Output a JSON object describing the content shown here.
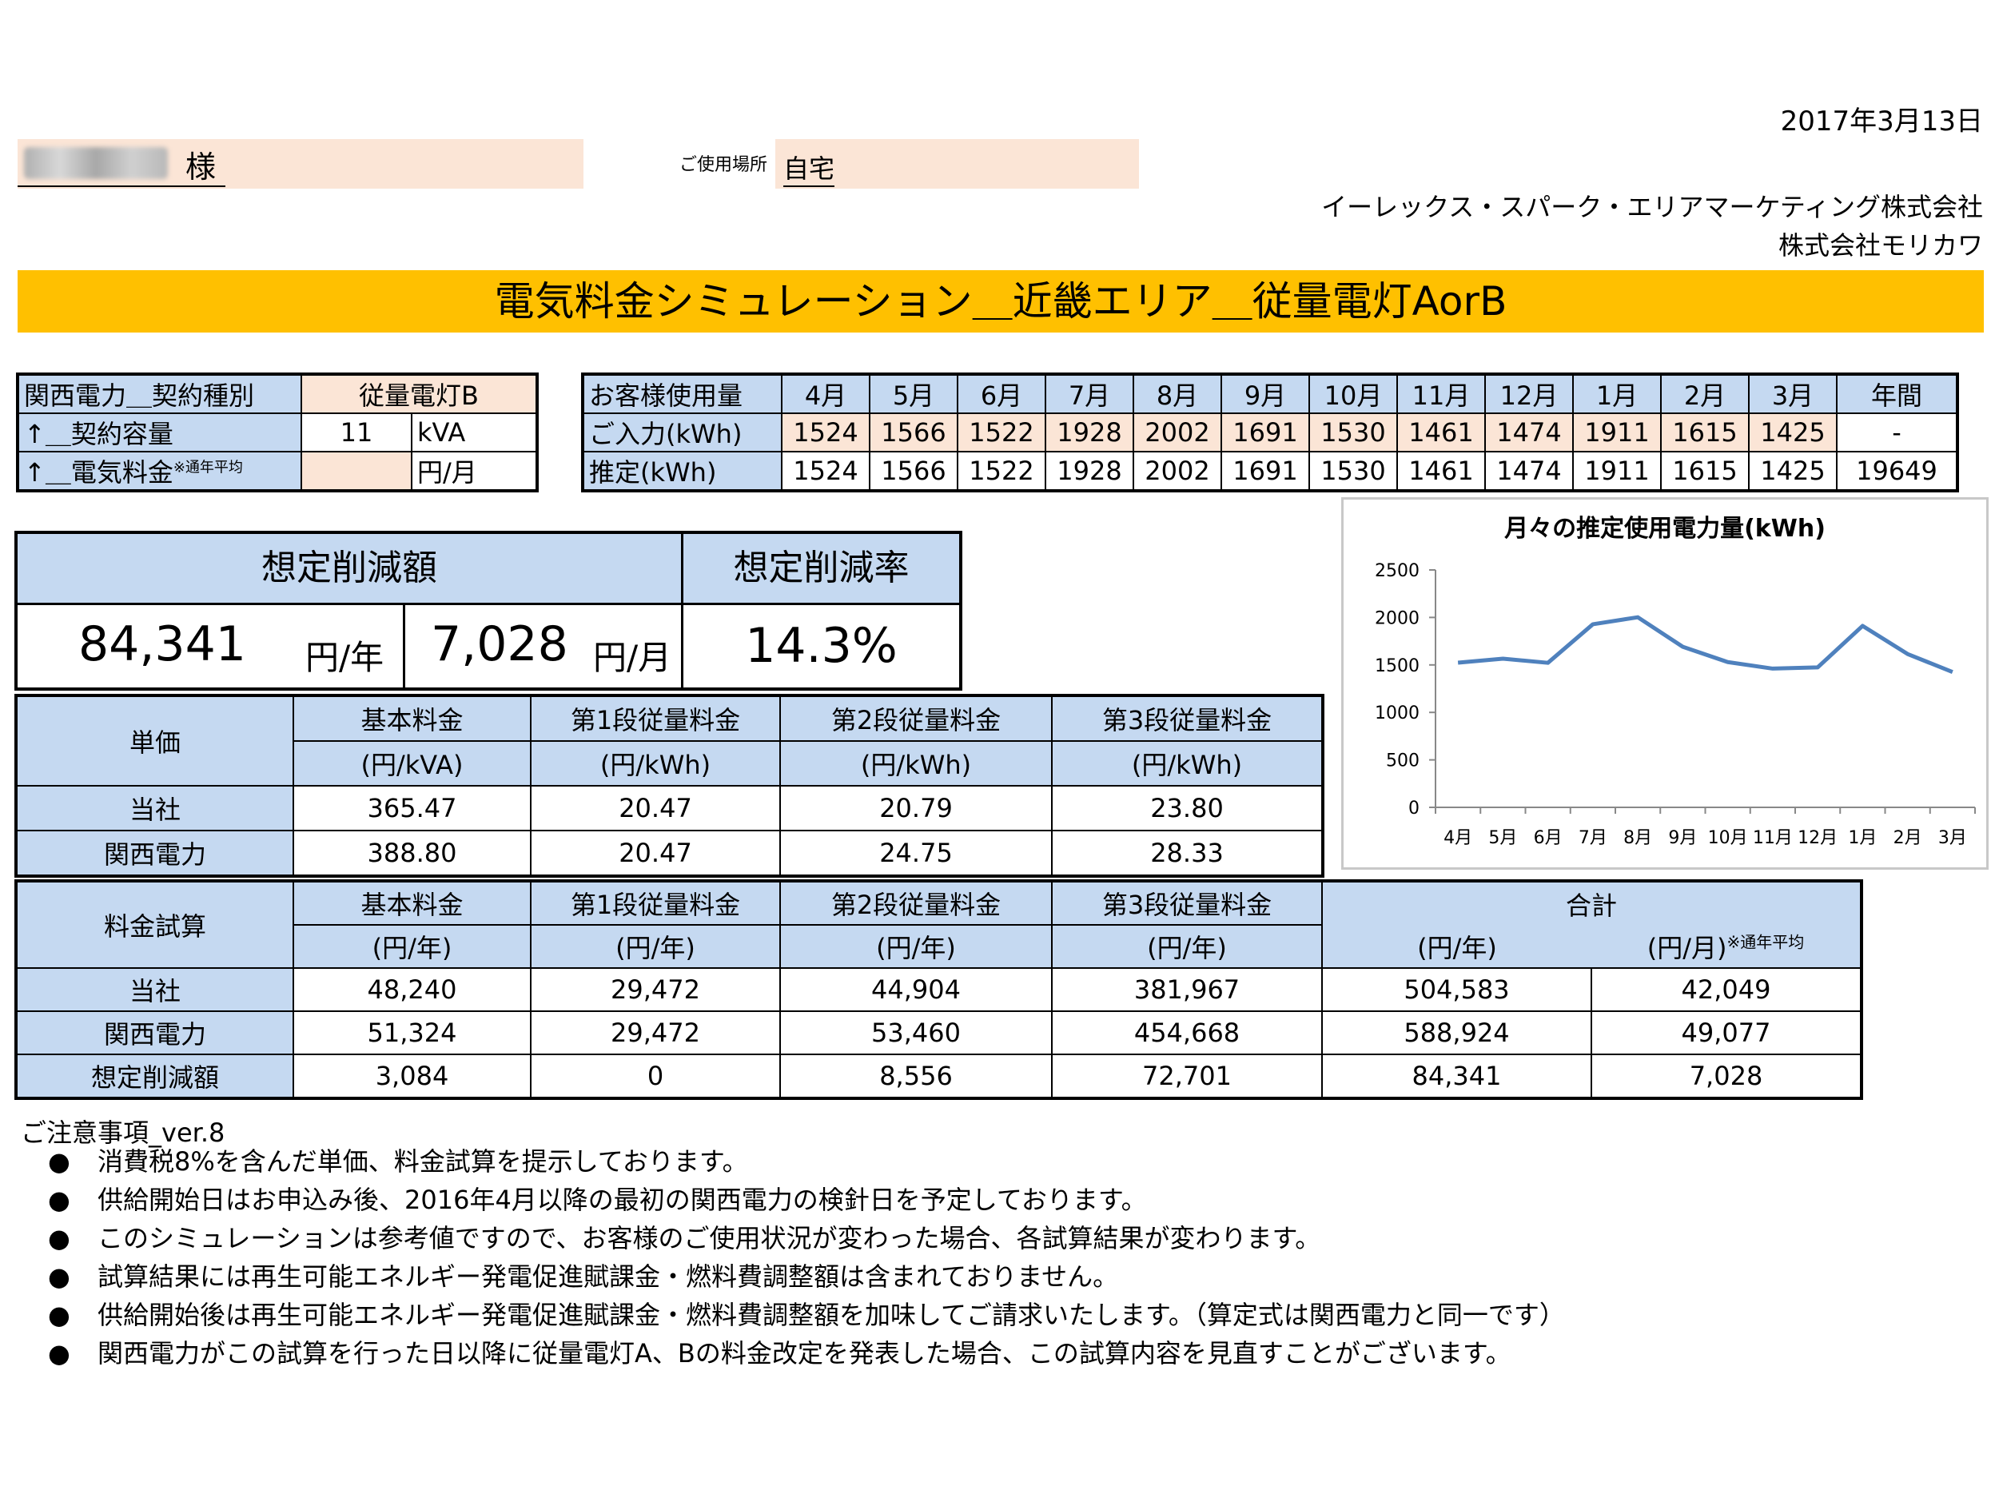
{
  "date": "2017年3月13日",
  "customer": {
    "sama": "様",
    "place_label": "ご使用場所",
    "place_value": "自宅"
  },
  "company": {
    "line1": "イーレックス・スパーク・エリアマーケティング株式会社",
    "line2": "株式会社モリカワ"
  },
  "banner_title": "電気料金シミュレーション＿近畿エリア＿従量電灯AorB",
  "contract": {
    "row1_label": "関西電力＿契約種別",
    "row1_value": "従量電灯B",
    "row2_label": "↑＿契約容量",
    "row2_value": "11",
    "row2_unit": "kVA",
    "row3_label": "↑＿電気料金",
    "row3_sup": "※通年平均",
    "row3_value": "",
    "row3_unit": "円/月"
  },
  "usage": {
    "header_label": "お客様使用量",
    "months": [
      "4月",
      "5月",
      "6月",
      "7月",
      "8月",
      "9月",
      "10月",
      "11月",
      "12月",
      "1月",
      "2月",
      "3月"
    ],
    "annual_label": "年間",
    "input_label": "ご入力(kWh)",
    "input_values": [
      "1524",
      "1566",
      "1522",
      "1928",
      "2002",
      "1691",
      "1530",
      "1461",
      "1474",
      "1911",
      "1615",
      "1425"
    ],
    "input_annual": "-",
    "estimate_label": "推定(kWh)",
    "estimate_values": [
      "1524",
      "1566",
      "1522",
      "1928",
      "2002",
      "1691",
      "1530",
      "1461",
      "1474",
      "1911",
      "1615",
      "1425"
    ],
    "estimate_annual": "19649"
  },
  "savings": {
    "amount_header": "想定削減額",
    "rate_header": "想定削減率",
    "yearly": "84,341",
    "yearly_unit": "円/年",
    "monthly": "7,028",
    "monthly_unit": "円/月",
    "rate": "14.3%"
  },
  "unit_price": {
    "corner": "単価",
    "headers": [
      "基本料金",
      "第1段従量料金",
      "第2段従量料金",
      "第3段従量料金"
    ],
    "units": [
      "(円/kVA)",
      "(円/kWh)",
      "(円/kWh)",
      "(円/kWh)"
    ],
    "rows": [
      {
        "label": "当社",
        "values": [
          "365.47",
          "20.47",
          "20.79",
          "23.80"
        ]
      },
      {
        "label": "関西電力",
        "values": [
          "388.80",
          "20.47",
          "24.75",
          "28.33"
        ]
      }
    ]
  },
  "fee_calc": {
    "corner": "料金試算",
    "headers": [
      "基本料金",
      "第1段従量料金",
      "第2段従量料金",
      "第3段従量料金"
    ],
    "total_header": "合計",
    "units": [
      "(円/年)",
      "(円/年)",
      "(円/年)",
      "(円/年)",
      "(円/年)",
      "(円/月)"
    ],
    "monthly_note": "※通年平均",
    "rows": [
      {
        "label": "当社",
        "values": [
          "48,240",
          "29,472",
          "44,904",
          "381,967",
          "504,583",
          "42,049"
        ]
      },
      {
        "label": "関西電力",
        "values": [
          "51,324",
          "29,472",
          "53,460",
          "454,668",
          "588,924",
          "49,077"
        ]
      },
      {
        "label": "想定削減額",
        "values": [
          "3,084",
          "0",
          "8,556",
          "72,701",
          "84,341",
          "7,028"
        ]
      }
    ]
  },
  "notes": {
    "title": "ご注意事項_ver.8",
    "bullet": "●",
    "items": [
      "消費税8%を含んだ単価、料金試算を提示しております。",
      "供給開始日はお申込み後、2016年4月以降の最初の関西電力の検針日を予定しております。",
      "このシミュレーションは参考値ですので、お客様のご使用状況が変わった場合、各試算結果が変わります。",
      "試算結果には再生可能エネルギー発電促進賦課金・燃料費調整額は含まれておりません。",
      "供給開始後は再生可能エネルギー発電促進賦課金・燃料費調整額を加味してご請求いたします。（算定式は関西電力と同一です）",
      "関西電力がこの試算を行った日以降に従量電灯A、Bの料金改定を発表した場合、この試算内容を見直すことがございます。"
    ]
  },
  "chart_data": {
    "type": "line",
    "title": "月々の推定使用電力量(kWh)",
    "categories": [
      "4月",
      "5月",
      "6月",
      "7月",
      "8月",
      "9月",
      "10月",
      "11月",
      "12月",
      "1月",
      "2月",
      "3月"
    ],
    "values": [
      1524,
      1566,
      1522,
      1928,
      2002,
      1691,
      1530,
      1461,
      1474,
      1911,
      1615,
      1425
    ],
    "yticks": [
      "0",
      "500",
      "1000",
      "1500",
      "2000",
      "2500"
    ],
    "ylim": [
      0,
      2500
    ],
    "line_color": "#4f81bd",
    "grid": false,
    "legend": "none"
  }
}
